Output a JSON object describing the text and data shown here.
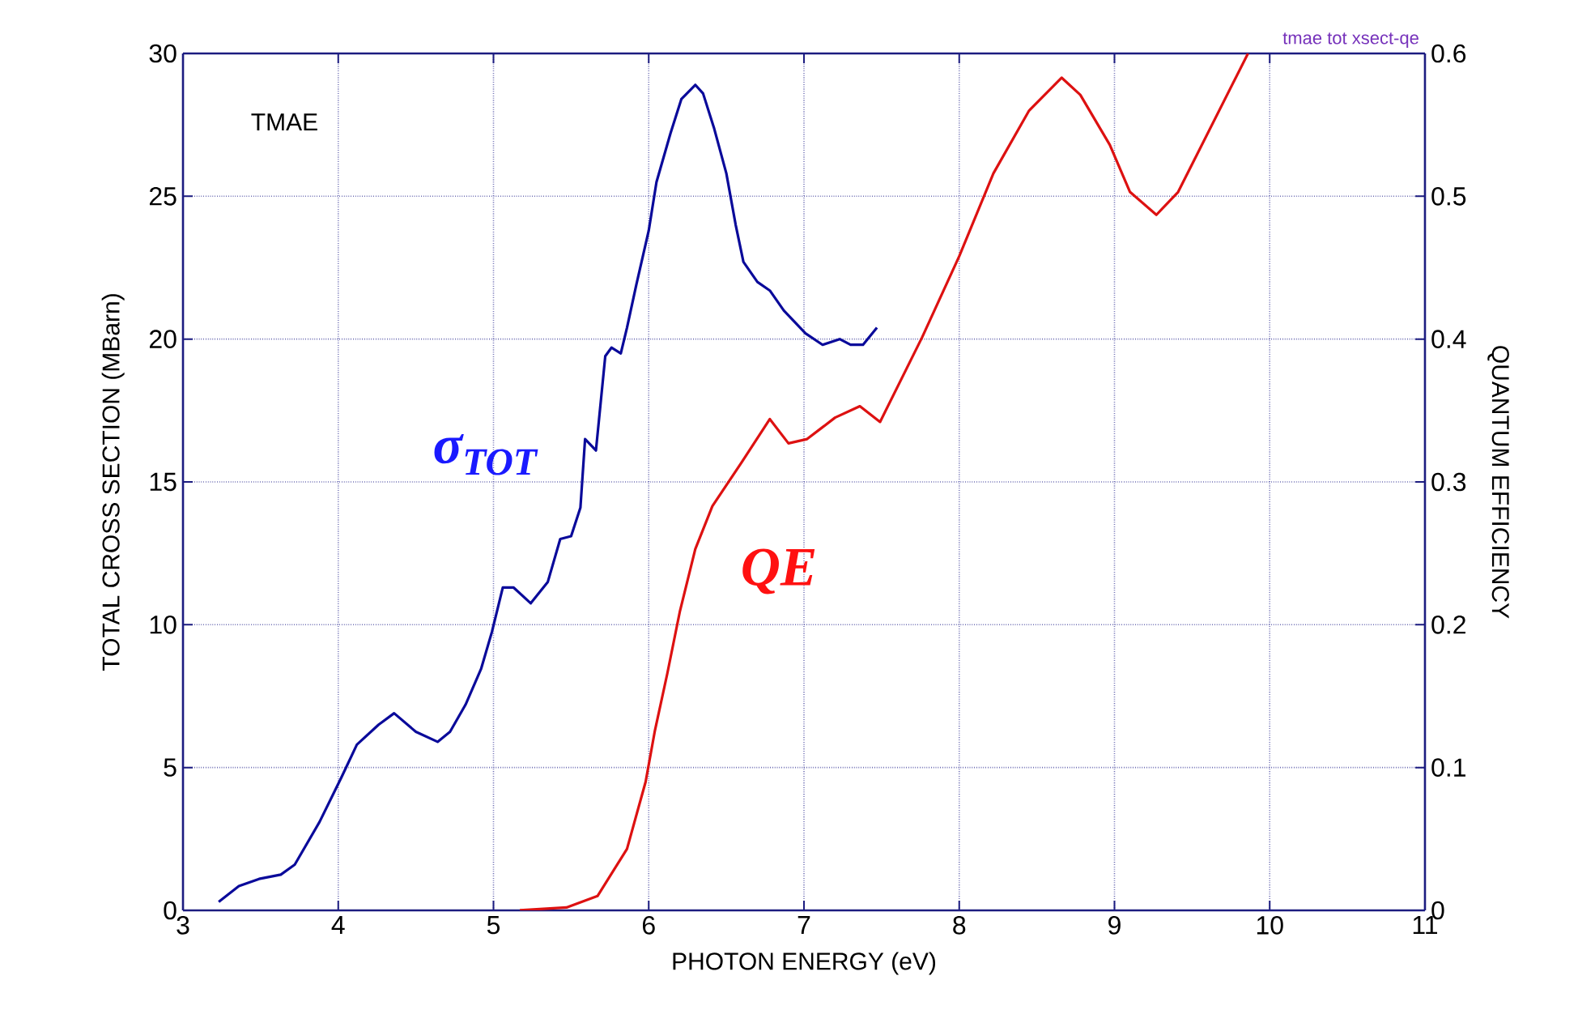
{
  "chart_data": {
    "type": "line",
    "xlabel": "PHOTON ENERGY (eV)",
    "ylabel": "TOTAL CROSS SECTION (MBarn)",
    "y2label": "QUANTUM EFFICIENCY",
    "annotations": [
      "TMAE",
      "tmae tot xsect-qe"
    ],
    "xlim": [
      3,
      11
    ],
    "xticks": [
      3,
      4,
      5,
      6,
      7,
      8,
      9,
      10,
      11
    ],
    "ylim": [
      0,
      30
    ],
    "yticks": [
      0,
      5,
      10,
      15,
      20,
      25,
      30
    ],
    "y2lim": [
      0,
      0.6
    ],
    "y2ticks": [
      0,
      0.1,
      0.2,
      0.3,
      0.4,
      0.5,
      0.6
    ],
    "grid": true,
    "marker": "none",
    "line_style": "solid",
    "series": [
      {
        "name": "σ$_{TOT}$",
        "color": "#0a0a9a",
        "x": [
          3.23,
          3.36,
          3.49,
          3.63,
          3.72,
          3.88,
          4.02,
          4.12,
          4.26,
          4.36,
          4.5,
          4.64,
          4.72,
          4.82,
          4.92,
          4.99,
          5.06,
          5.13,
          5.24,
          5.35,
          5.43,
          5.5,
          5.56,
          5.59,
          5.66,
          5.72,
          5.76,
          5.82,
          5.86,
          5.92,
          6.0,
          6.05,
          6.14,
          6.21,
          6.3,
          6.35,
          6.42,
          6.5,
          6.56,
          6.61,
          6.7,
          6.78,
          6.87,
          7.01,
          7.12,
          7.23,
          7.3,
          7.38,
          7.47
        ],
        "values": [
          0.3,
          0.85,
          1.1,
          1.25,
          1.6,
          3.1,
          4.65,
          5.8,
          6.5,
          6.9,
          6.25,
          5.9,
          6.25,
          7.2,
          8.45,
          9.75,
          11.3,
          11.3,
          10.75,
          11.5,
          13.0,
          13.1,
          14.1,
          16.5,
          16.1,
          19.4,
          19.7,
          19.5,
          20.4,
          21.9,
          23.8,
          25.5,
          27.2,
          28.4,
          28.9,
          28.6,
          27.4,
          25.8,
          24.0,
          22.7,
          22.0,
          21.7,
          21.0,
          20.2,
          19.8,
          20.0,
          19.8,
          19.8,
          20.4
        ]
      },
      {
        "name": "QE",
        "color": "#dd1111",
        "axis": "y2",
        "x": [
          5.17,
          5.47,
          5.67,
          5.86,
          5.98,
          6.04,
          6.12,
          6.2,
          6.3,
          6.41,
          6.6,
          6.78,
          6.9,
          7.02,
          7.2,
          7.36,
          7.49,
          7.76,
          8.0,
          8.22,
          8.45,
          8.66,
          8.78,
          8.97,
          9.1,
          9.27,
          9.41,
          9.86
        ],
        "values": [
          0.0,
          0.002,
          0.01,
          0.043,
          0.09,
          0.126,
          0.166,
          0.209,
          0.253,
          0.283,
          0.314,
          0.344,
          0.327,
          0.33,
          0.345,
          0.353,
          0.342,
          0.401,
          0.458,
          0.516,
          0.56,
          0.583,
          0.571,
          0.536,
          0.503,
          0.487,
          0.503,
          0.6
        ]
      }
    ]
  }
}
